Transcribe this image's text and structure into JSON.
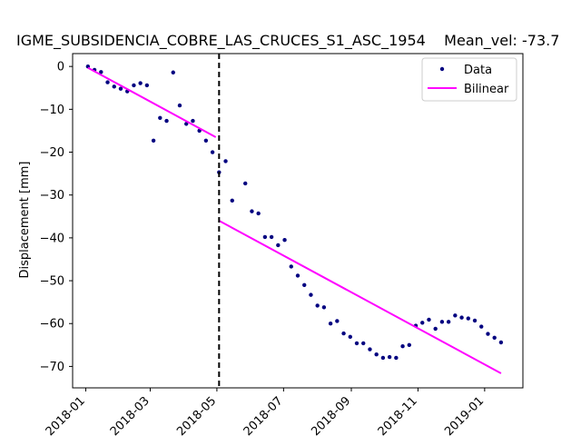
{
  "chart_data": {
    "type": "scatter",
    "title": "IGME_SUBSIDENCIA_COBRE_LAS_CRUCES_S1_ASC_1954    Mean_vel: -73.7",
    "xlabel": "",
    "ylabel": "Displacement [mm]",
    "xlim": [
      "2017-12-20",
      "2019-02-05"
    ],
    "ylim": [
      -75,
      3
    ],
    "x_ticks": [
      "2018-01",
      "2018-03",
      "2018-05",
      "2018-07",
      "2018-09",
      "2018-11",
      "2019-01"
    ],
    "y_ticks": [
      0,
      -10,
      -20,
      -30,
      -40,
      -50,
      -60,
      -70
    ],
    "grid": false,
    "legend_position": "top-right",
    "series": [
      {
        "name": "Data",
        "kind": "points",
        "color": "#000080",
        "points": [
          [
            "2018-01-03",
            0.0
          ],
          [
            "2018-01-09",
            -0.8
          ],
          [
            "2018-01-15",
            -1.3
          ],
          [
            "2018-01-21",
            -3.7
          ],
          [
            "2018-01-27",
            -4.7
          ],
          [
            "2018-02-02",
            -5.2
          ],
          [
            "2018-02-08",
            -5.8
          ],
          [
            "2018-02-14",
            -4.4
          ],
          [
            "2018-02-20",
            -3.9
          ],
          [
            "2018-02-26",
            -4.4
          ],
          [
            "2018-03-04",
            -17.3
          ],
          [
            "2018-03-10",
            -12.0
          ],
          [
            "2018-03-16",
            -12.7
          ],
          [
            "2018-03-22",
            -1.4
          ],
          [
            "2018-03-28",
            -9.1
          ],
          [
            "2018-04-03",
            -13.4
          ],
          [
            "2018-04-09",
            -12.7
          ],
          [
            "2018-04-15",
            -15.0
          ],
          [
            "2018-04-21",
            -17.3
          ],
          [
            "2018-04-27",
            -20.0
          ],
          [
            "2018-05-03",
            -24.7
          ],
          [
            "2018-05-09",
            -22.1
          ],
          [
            "2018-05-15",
            -31.3
          ],
          [
            "2018-05-27",
            -27.3
          ],
          [
            "2018-06-02",
            -33.8
          ],
          [
            "2018-06-08",
            -34.3
          ],
          [
            "2018-06-14",
            -39.8
          ],
          [
            "2018-06-20",
            -39.8
          ],
          [
            "2018-06-26",
            -41.7
          ],
          [
            "2018-07-02",
            -40.5
          ],
          [
            "2018-07-08",
            -46.7
          ],
          [
            "2018-07-14",
            -48.8
          ],
          [
            "2018-07-20",
            -51.0
          ],
          [
            "2018-07-26",
            -53.3
          ],
          [
            "2018-08-01",
            -55.8
          ],
          [
            "2018-08-07",
            -56.2
          ],
          [
            "2018-08-13",
            -60.0
          ],
          [
            "2018-08-19",
            -59.4
          ],
          [
            "2018-08-25",
            -62.3
          ],
          [
            "2018-08-31",
            -63.1
          ],
          [
            "2018-09-06",
            -64.6
          ],
          [
            "2018-09-12",
            -64.6
          ],
          [
            "2018-09-18",
            -66.0
          ],
          [
            "2018-09-24",
            -67.2
          ],
          [
            "2018-09-30",
            -68.0
          ],
          [
            "2018-10-06",
            -67.8
          ],
          [
            "2018-10-12",
            -68.0
          ],
          [
            "2018-10-18",
            -65.3
          ],
          [
            "2018-10-24",
            -65.0
          ],
          [
            "2018-10-30",
            -60.5
          ],
          [
            "2018-11-05",
            -59.8
          ],
          [
            "2018-11-11",
            -59.1
          ],
          [
            "2018-11-17",
            -61.2
          ],
          [
            "2018-11-23",
            -59.6
          ],
          [
            "2018-11-29",
            -59.6
          ],
          [
            "2018-12-05",
            -58.1
          ],
          [
            "2018-12-11",
            -58.6
          ],
          [
            "2018-12-17",
            -58.8
          ],
          [
            "2018-12-23",
            -59.3
          ],
          [
            "2018-12-29",
            -60.7
          ],
          [
            "2019-01-04",
            -62.4
          ],
          [
            "2019-01-10",
            -63.3
          ],
          [
            "2019-01-16",
            -64.4
          ]
        ]
      },
      {
        "name": "Bilinear",
        "kind": "line",
        "color": "#ff00ff",
        "segments": [
          [
            [
              "2018-01-03",
              -0.3
            ],
            [
              "2018-04-30",
              -16.5
            ]
          ],
          [
            "2018-05-03",
            -36.0
          ],
          [
            "2019-01-16",
            -71.6
          ]
        ]
      }
    ],
    "breakpoint": {
      "x": "2018-05-03",
      "style": "dashed",
      "color": "#000000"
    }
  }
}
